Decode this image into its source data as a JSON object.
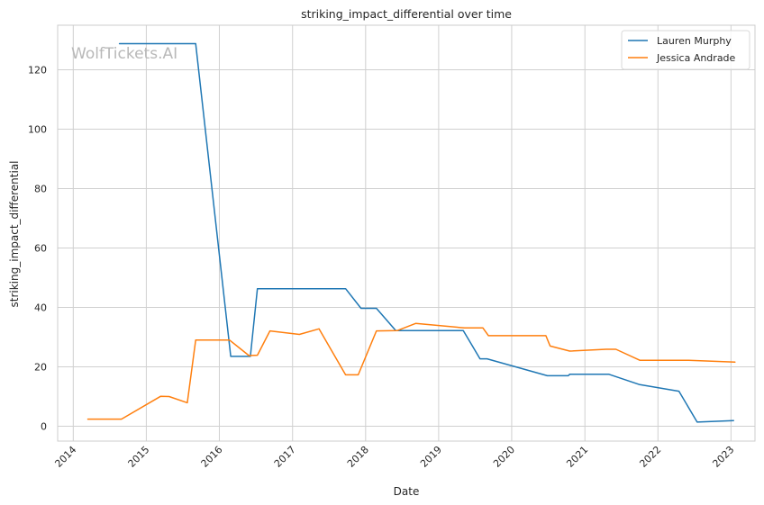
{
  "chart_data": {
    "type": "line",
    "title": "striking_impact_differential over time",
    "xlabel": "Date",
    "ylabel": "striking_impact_differential",
    "watermark": "WolfTickets.AI",
    "x_axis_type": "date",
    "xlim": [
      "2013-10-15",
      "2023-05-01"
    ],
    "ylim": [
      -5,
      135
    ],
    "x_ticks": [
      "2014",
      "2015",
      "2016",
      "2017",
      "2018",
      "2019",
      "2020",
      "2021",
      "2022",
      "2023"
    ],
    "y_ticks": [
      0,
      20,
      40,
      60,
      80,
      100,
      120
    ],
    "grid": true,
    "legend_position": "top-right",
    "series": [
      {
        "name": "Lauren Murphy",
        "color": "#1f77b4",
        "points": [
          [
            "2014-08-20",
            128.8
          ],
          [
            "2015-09-05",
            128.8
          ],
          [
            "2016-02-27",
            23.5
          ],
          [
            "2016-06-04",
            23.5
          ],
          [
            "2016-07-09",
            46.3
          ],
          [
            "2017-09-23",
            46.3
          ],
          [
            "2017-12-09",
            39.7
          ],
          [
            "2018-02-24",
            39.7
          ],
          [
            "2018-06-01",
            32.2
          ],
          [
            "2019-05-04",
            32.2
          ],
          [
            "2019-07-27",
            22.7
          ],
          [
            "2019-08-31",
            22.7
          ],
          [
            "2020-06-27",
            17.0
          ],
          [
            "2020-10-10",
            17.0
          ],
          [
            "2020-10-17",
            17.5
          ],
          [
            "2021-05-01",
            17.5
          ],
          [
            "2021-10-02",
            14.0
          ],
          [
            "2022-04-16",
            11.8
          ],
          [
            "2022-07-16",
            1.4
          ],
          [
            "2023-01-14",
            1.9
          ]
        ]
      },
      {
        "name": "Jessica Andrade",
        "color": "#ff7f0e",
        "points": [
          [
            "2014-03-15",
            2.4
          ],
          [
            "2014-08-30",
            2.4
          ],
          [
            "2015-03-14",
            10.1
          ],
          [
            "2015-04-25",
            10.0
          ],
          [
            "2015-07-25",
            7.9
          ],
          [
            "2015-09-05",
            29.0
          ],
          [
            "2016-02-21",
            29.0
          ],
          [
            "2016-05-28",
            23.8
          ],
          [
            "2016-07-09",
            23.9
          ],
          [
            "2016-09-10",
            32.1
          ],
          [
            "2017-02-04",
            30.9
          ],
          [
            "2017-05-13",
            32.8
          ],
          [
            "2017-09-23",
            17.3
          ],
          [
            "2017-11-25",
            17.3
          ],
          [
            "2018-02-24",
            32.1
          ],
          [
            "2018-06-09",
            32.2
          ],
          [
            "2018-09-08",
            34.6
          ],
          [
            "2019-05-11",
            33.1
          ],
          [
            "2019-08-10",
            33.1
          ],
          [
            "2019-09-07",
            30.5
          ],
          [
            "2020-06-20",
            30.5
          ],
          [
            "2020-07-11",
            27.0
          ],
          [
            "2020-10-17",
            25.3
          ],
          [
            "2021-04-17",
            25.9
          ],
          [
            "2021-06-05",
            25.9
          ],
          [
            "2021-10-02",
            22.2
          ],
          [
            "2022-06-04",
            22.2
          ],
          [
            "2023-01-21",
            21.6
          ]
        ]
      }
    ]
  }
}
